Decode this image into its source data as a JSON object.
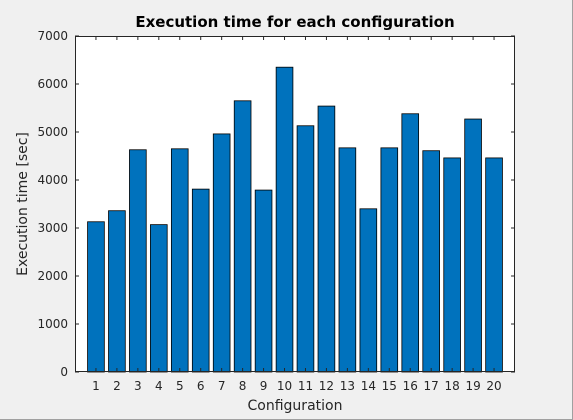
{
  "chart_data": {
    "type": "bar",
    "title": "Execution time for each configuration",
    "xlabel": "Configuration",
    "ylabel": "Execution time [sec]",
    "categories": [
      "1",
      "2",
      "3",
      "4",
      "5",
      "6",
      "7",
      "8",
      "9",
      "10",
      "11",
      "12",
      "13",
      "14",
      "15",
      "16",
      "17",
      "18",
      "19",
      "20"
    ],
    "values": [
      3130,
      3360,
      4630,
      3070,
      4650,
      3810,
      4960,
      5650,
      3790,
      6350,
      5130,
      5540,
      4670,
      3400,
      4670,
      5380,
      4610,
      4460,
      5270,
      4460
    ],
    "ylim": [
      0,
      7000
    ],
    "yticks": [
      0,
      1000,
      2000,
      3000,
      4000,
      5000,
      6000,
      7000
    ],
    "grid": false,
    "bar_color": "#0072bd",
    "bar_edge_color": "#000000",
    "axes_background": "#ffffff",
    "figure_background": "#f0f0f0"
  }
}
